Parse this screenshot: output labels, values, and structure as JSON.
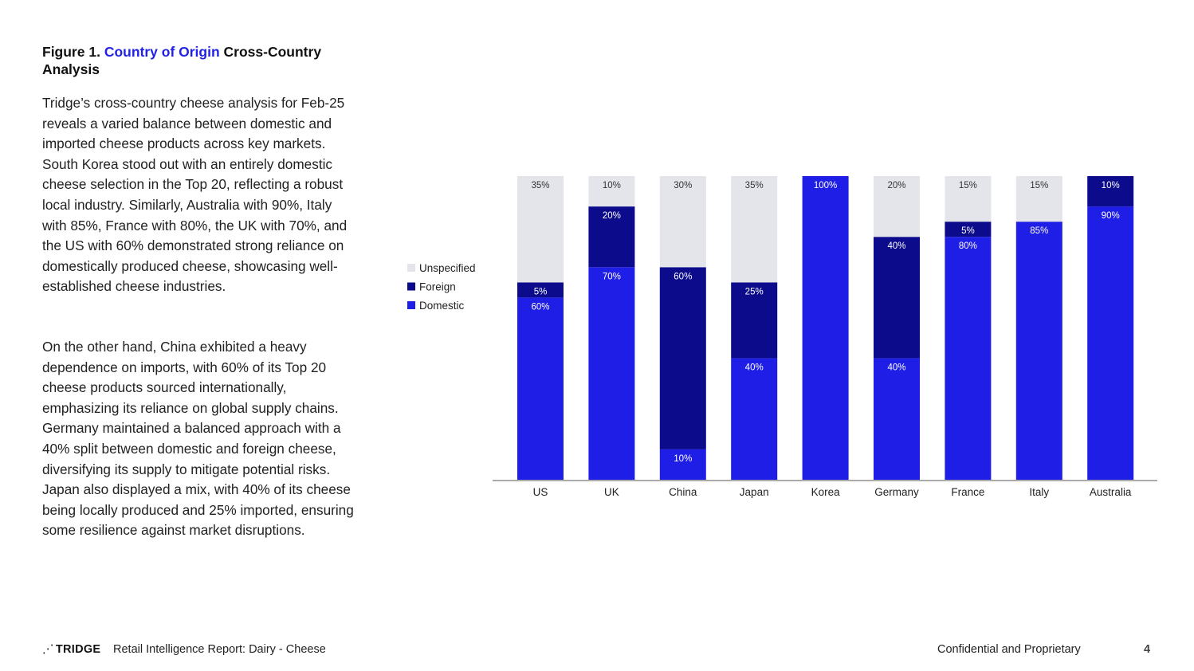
{
  "header": {
    "title_prefix": "Figure 1.",
    "title_accent": "Country of Origin",
    "title_suffix": "Cross-Country Analysis"
  },
  "body": {
    "paragraph_1": "Tridge’s cross-country cheese analysis for Feb-25 reveals a varied balance between domestic and imported cheese products across key markets. South Korea stood out with an entirely domestic cheese selection in the Top 20, reflecting a robust local industry. Similarly, Australia with 90%, Italy with 85%, France with 80%, the UK with 70%, and the US with 60% demonstrated strong reliance on domestically produced cheese, showcasing well-established cheese industries.",
    "paragraph_2": "On the other hand, China exhibited a heavy dependence on imports, with 60% of its Top 20 cheese products sourced internationally, emphasizing its reliance on global supply chains. Germany maintained a balanced approach with a 40% split between domestic and foreign cheese, diversifying its supply to mitigate potential risks. Japan also displayed a mix, with 40% of its cheese being locally produced and 25% imported, ensuring some resilience against market disruptions."
  },
  "chart_data": {
    "type": "bar",
    "stacked": true,
    "categories": [
      "US",
      "UK",
      "China",
      "Japan",
      "Korea",
      "Germany",
      "France",
      "Italy",
      "Australia"
    ],
    "series": [
      {
        "name": "Domestic",
        "color": "#1e1ee6",
        "values": [
          60,
          70,
          10,
          40,
          100,
          40,
          80,
          85,
          90
        ]
      },
      {
        "name": "Foreign",
        "color": "#0b0b8c",
        "values": [
          5,
          20,
          60,
          25,
          0,
          40,
          5,
          0,
          10
        ]
      },
      {
        "name": "Unspecified",
        "color": "#e3e5ea",
        "values": [
          35,
          10,
          30,
          35,
          0,
          20,
          15,
          15,
          0
        ]
      }
    ],
    "unit": "%",
    "ylim": [
      0,
      100
    ],
    "legend": [
      "Unspecified",
      "Foreign",
      "Domestic"
    ],
    "legend_position": "left",
    "title": "",
    "xlabel": "",
    "ylabel": ""
  },
  "footer": {
    "logo": "TRIDGE",
    "report_title": "Retail Intelligence Report: Dairy - Cheese",
    "confidential": "Confidential and Proprietary",
    "page_number": "4"
  }
}
